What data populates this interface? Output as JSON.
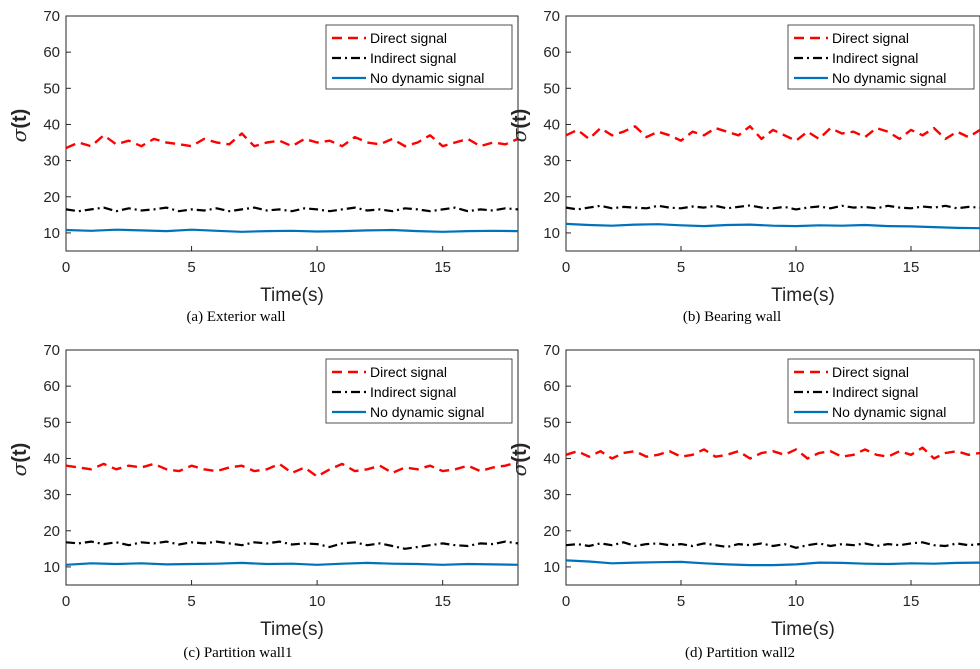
{
  "figure": {
    "legend_placement": "top-right",
    "colors": {
      "direct": "#ff0000",
      "indirect": "#000000",
      "none": "#0072bd"
    }
  },
  "chart_data": [
    {
      "type": "line",
      "caption": "(a) Exterior wall",
      "xlabel": "Time(s)",
      "ylabel_symbol": "σ",
      "ylabel_arg": "(t)",
      "xlim": [
        0,
        18
      ],
      "ylim": [
        5,
        70
      ],
      "xticks": [
        0,
        5,
        10,
        15
      ],
      "yticks": [
        10,
        20,
        30,
        40,
        50,
        60,
        70
      ],
      "grid": false,
      "series": [
        {
          "name": "Direct signal",
          "style": "dashed",
          "color": "#ff0000",
          "x": [
            0,
            0.5,
            1,
            1.5,
            2,
            2.5,
            3,
            3.5,
            4,
            4.5,
            5,
            5.5,
            6,
            6.5,
            7,
            7.5,
            8,
            8.5,
            9,
            9.5,
            10,
            10.5,
            11,
            11.5,
            12,
            12.5,
            13,
            13.5,
            14,
            14.5,
            15,
            15.5,
            16,
            16.5,
            17,
            17.5,
            18
          ],
          "y": [
            33.5,
            35,
            34,
            37,
            34.5,
            35.5,
            34,
            36,
            35,
            34.5,
            34,
            36,
            35,
            34.5,
            37.5,
            34,
            35,
            35.5,
            34,
            36,
            35,
            35.5,
            34,
            36.5,
            35,
            34.5,
            36,
            34,
            35,
            37,
            34,
            35,
            36,
            34,
            35,
            34.5,
            36
          ]
        },
        {
          "name": "Indirect signal",
          "style": "dashdot",
          "color": "#000000",
          "x": [
            0,
            0.5,
            1,
            1.5,
            2,
            2.5,
            3,
            3.5,
            4,
            4.5,
            5,
            5.5,
            6,
            6.5,
            7,
            7.5,
            8,
            8.5,
            9,
            9.5,
            10,
            10.5,
            11,
            11.5,
            12,
            12.5,
            13,
            13.5,
            14,
            14.5,
            15,
            15.5,
            16,
            16.5,
            17,
            17.5,
            18
          ],
          "y": [
            16.5,
            16,
            16.5,
            17,
            16,
            16.8,
            16.2,
            16.5,
            17,
            16,
            16.5,
            16.2,
            16.8,
            16,
            16.5,
            17,
            16.2,
            16.5,
            16,
            16.8,
            16.5,
            16,
            16.5,
            17,
            16.2,
            16.5,
            16,
            16.8,
            16.5,
            16,
            16.5,
            17,
            16,
            16.5,
            16.2,
            16.8,
            16.5
          ]
        },
        {
          "name": "No dynamic signal",
          "style": "solid",
          "color": "#0072bd",
          "x": [
            0,
            1,
            2,
            3,
            4,
            5,
            6,
            7,
            8,
            9,
            10,
            11,
            12,
            13,
            14,
            15,
            16,
            17,
            18
          ],
          "y": [
            10.8,
            10.6,
            10.9,
            10.7,
            10.5,
            10.9,
            10.6,
            10.3,
            10.5,
            10.6,
            10.4,
            10.5,
            10.7,
            10.8,
            10.5,
            10.3,
            10.5,
            10.6,
            10.5
          ]
        }
      ]
    },
    {
      "type": "line",
      "caption": "(b) Bearing wall",
      "xlabel": "Time(s)",
      "ylabel_symbol": "σ",
      "ylabel_arg": "(t)",
      "xlim": [
        0,
        18
      ],
      "ylim": [
        5,
        70
      ],
      "xticks": [
        0,
        5,
        10,
        15
      ],
      "yticks": [
        10,
        20,
        30,
        40,
        50,
        60,
        70
      ],
      "grid": false,
      "series": [
        {
          "name": "Direct signal",
          "style": "dashed",
          "color": "#ff0000",
          "x": [
            0,
            0.5,
            1,
            1.5,
            2,
            2.5,
            3,
            3.5,
            4,
            4.5,
            5,
            5.5,
            6,
            6.5,
            7,
            7.5,
            8,
            8.5,
            9,
            9.5,
            10,
            10.5,
            11,
            11.5,
            12,
            12.5,
            13,
            13.5,
            14,
            14.5,
            15,
            15.5,
            16,
            16.5,
            17,
            17.5,
            18
          ],
          "y": [
            37,
            38.5,
            36,
            39,
            37,
            38,
            39.5,
            36.5,
            38,
            37,
            35.5,
            38,
            37,
            39,
            38,
            37,
            39.5,
            36,
            38.5,
            37,
            35.5,
            38,
            36,
            39,
            37.5,
            38,
            36.5,
            39,
            38,
            36,
            38.5,
            37,
            39,
            36,
            38,
            36.5,
            38.5
          ]
        },
        {
          "name": "Indirect signal",
          "style": "dashdot",
          "color": "#000000",
          "x": [
            0,
            0.5,
            1,
            1.5,
            2,
            2.5,
            3,
            3.5,
            4,
            4.5,
            5,
            5.5,
            6,
            6.5,
            7,
            7.5,
            8,
            8.5,
            9,
            9.5,
            10,
            10.5,
            11,
            11.5,
            12,
            12.5,
            13,
            13.5,
            14,
            14.5,
            15,
            15.5,
            16,
            16.5,
            17,
            17.5,
            18
          ],
          "y": [
            17,
            16.5,
            17,
            17.5,
            16.8,
            17.2,
            17,
            16.8,
            17.5,
            17,
            16.8,
            17.3,
            17,
            17.5,
            16.8,
            17.2,
            17.6,
            17,
            16.8,
            17.2,
            16.5,
            17,
            17.3,
            16.8,
            17.5,
            17,
            17.2,
            16.8,
            17.5,
            17,
            16.8,
            17.3,
            17,
            17.5,
            16.8,
            17.2,
            17
          ]
        },
        {
          "name": "No dynamic signal",
          "style": "solid",
          "color": "#0072bd",
          "x": [
            0,
            1,
            2,
            3,
            4,
            5,
            6,
            7,
            8,
            9,
            10,
            11,
            12,
            13,
            14,
            15,
            16,
            17,
            18
          ],
          "y": [
            12.5,
            12.2,
            12.0,
            12.3,
            12.4,
            12.1,
            11.9,
            12.2,
            12.3,
            12.0,
            11.9,
            12.1,
            12.0,
            12.2,
            11.9,
            11.8,
            11.6,
            11.4,
            11.3
          ]
        }
      ]
    },
    {
      "type": "line",
      "caption": "(c) Partition wall1",
      "xlabel": "Time(s)",
      "ylabel_symbol": "σ",
      "ylabel_arg": "(t)",
      "xlim": [
        0,
        18
      ],
      "ylim": [
        5,
        70
      ],
      "xticks": [
        0,
        5,
        10,
        15
      ],
      "yticks": [
        10,
        20,
        30,
        40,
        50,
        60,
        70
      ],
      "grid": false,
      "series": [
        {
          "name": "Direct signal",
          "style": "dashed",
          "color": "#ff0000",
          "x": [
            0,
            0.5,
            1,
            1.5,
            2,
            2.5,
            3,
            3.5,
            4,
            4.5,
            5,
            5.5,
            6,
            6.5,
            7,
            7.5,
            8,
            8.5,
            9,
            9.5,
            10,
            10.5,
            11,
            11.5,
            12,
            12.5,
            13,
            13.5,
            14,
            14.5,
            15,
            15.5,
            16,
            16.5,
            17,
            17.5,
            18
          ],
          "y": [
            38,
            37.5,
            37,
            38.5,
            37,
            38,
            37.5,
            38.5,
            37,
            36.5,
            38,
            37,
            36.5,
            37.5,
            38,
            36.5,
            37,
            38.5,
            36,
            37.5,
            35,
            37,
            38.5,
            36.5,
            37,
            38,
            36,
            37.5,
            37,
            38,
            36.5,
            37,
            38,
            36.5,
            37.5,
            38,
            39
          ]
        },
        {
          "name": "Indirect signal",
          "style": "dashdot",
          "color": "#000000",
          "x": [
            0,
            0.5,
            1,
            1.5,
            2,
            2.5,
            3,
            3.5,
            4,
            4.5,
            5,
            5.5,
            6,
            6.5,
            7,
            7.5,
            8,
            8.5,
            9,
            9.5,
            10,
            10.5,
            11,
            11.5,
            12,
            12.5,
            13,
            13.5,
            14,
            14.5,
            15,
            15.5,
            16,
            16.5,
            17,
            17.5,
            18
          ],
          "y": [
            16.8,
            16.5,
            17,
            16.3,
            16.8,
            16,
            16.8,
            16.5,
            17,
            16.2,
            16.8,
            16.5,
            17,
            16.5,
            16,
            16.8,
            16.5,
            17,
            16.2,
            16.5,
            16.3,
            15.5,
            16.5,
            16.8,
            16,
            16.5,
            15.8,
            15,
            15.5,
            16,
            16.5,
            16,
            15.8,
            16.5,
            16.3,
            17,
            16.5
          ]
        },
        {
          "name": "No dynamic signal",
          "style": "solid",
          "color": "#0072bd",
          "x": [
            0,
            1,
            2,
            3,
            4,
            5,
            6,
            7,
            8,
            9,
            10,
            11,
            12,
            13,
            14,
            15,
            16,
            17,
            18
          ],
          "y": [
            10.6,
            11.0,
            10.8,
            11.0,
            10.7,
            10.8,
            10.9,
            11.1,
            10.8,
            10.9,
            10.6,
            10.9,
            11.1,
            10.9,
            10.8,
            10.6,
            10.8,
            10.7,
            10.6
          ]
        }
      ]
    },
    {
      "type": "line",
      "caption": "(d) Partition wall2",
      "xlabel": "Time(s)",
      "ylabel_symbol": "σ",
      "ylabel_arg": "(t)",
      "xlim": [
        0,
        18
      ],
      "ylim": [
        5,
        70
      ],
      "xticks": [
        0,
        5,
        10,
        15
      ],
      "yticks": [
        10,
        20,
        30,
        40,
        50,
        60,
        70
      ],
      "grid": false,
      "series": [
        {
          "name": "Direct signal",
          "style": "dashed",
          "color": "#ff0000",
          "x": [
            0,
            0.5,
            1,
            1.5,
            2,
            2.5,
            3,
            3.5,
            4,
            4.5,
            5,
            5.5,
            6,
            6.5,
            7,
            7.5,
            8,
            8.5,
            9,
            9.5,
            10,
            10.5,
            11,
            11.5,
            12,
            12.5,
            13,
            13.5,
            14,
            14.5,
            15,
            15.5,
            16,
            16.5,
            17,
            17.5,
            18
          ],
          "y": [
            41,
            42,
            40.5,
            42,
            40,
            41.5,
            42,
            40.5,
            41,
            42,
            40.5,
            41,
            42.5,
            40.5,
            41,
            42,
            40,
            41.5,
            42,
            41,
            42.5,
            40,
            41.5,
            42,
            40.5,
            41,
            42.5,
            41,
            40.5,
            42,
            41,
            43,
            40,
            41.5,
            42,
            41,
            41.5
          ]
        },
        {
          "name": "Indirect signal",
          "style": "dashdot",
          "color": "#000000",
          "x": [
            0,
            0.5,
            1,
            1.5,
            2,
            2.5,
            3,
            3.5,
            4,
            4.5,
            5,
            5.5,
            6,
            6.5,
            7,
            7.5,
            8,
            8.5,
            9,
            9.5,
            10,
            10.5,
            11,
            11.5,
            12,
            12.5,
            13,
            13.5,
            14,
            14.5,
            15,
            15.5,
            16,
            16.5,
            17,
            17.5,
            18
          ],
          "y": [
            16,
            16.3,
            15.8,
            16.5,
            16,
            16.8,
            15.8,
            16.3,
            16.5,
            16,
            16.3,
            15.8,
            16.5,
            16,
            15.5,
            16.3,
            16,
            16.5,
            15.8,
            16.3,
            15.3,
            16,
            16.5,
            15.8,
            16.3,
            16,
            16.5,
            15.8,
            16.3,
            16,
            16.5,
            16.8,
            16,
            15.8,
            16.5,
            16,
            16.3
          ]
        },
        {
          "name": "No dynamic signal",
          "style": "solid",
          "color": "#0072bd",
          "x": [
            0,
            1,
            2,
            3,
            4,
            5,
            6,
            7,
            8,
            9,
            10,
            11,
            12,
            13,
            14,
            15,
            16,
            17,
            18
          ],
          "y": [
            11.8,
            11.5,
            11.0,
            11.2,
            11.3,
            11.4,
            11.0,
            10.7,
            10.5,
            10.5,
            10.7,
            11.2,
            11.1,
            10.9,
            10.8,
            11.0,
            10.9,
            11.1,
            11.2
          ]
        }
      ]
    }
  ]
}
